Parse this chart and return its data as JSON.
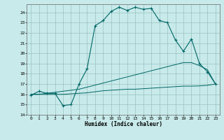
{
  "xlabel": "Humidex (Indice chaleur)",
  "bg_color": "#c8eaea",
  "grid_color": "#9bbfbf",
  "line_color": "#006666",
  "xlim": [
    -0.5,
    23.5
  ],
  "ylim": [
    14,
    24.8
  ],
  "yticks": [
    14,
    15,
    16,
    17,
    18,
    19,
    20,
    21,
    22,
    23,
    24
  ],
  "xticks": [
    0,
    1,
    2,
    3,
    4,
    5,
    6,
    7,
    8,
    9,
    10,
    11,
    12,
    13,
    14,
    15,
    16,
    17,
    18,
    19,
    20,
    21,
    22,
    23
  ],
  "main_line": [
    15.9,
    16.3,
    16.1,
    16.1,
    14.9,
    15.0,
    17.0,
    18.5,
    22.7,
    23.2,
    24.1,
    24.5,
    24.2,
    24.5,
    24.3,
    24.4,
    23.2,
    23.0,
    21.3,
    20.2,
    21.4,
    19.0,
    18.2,
    17.0
  ],
  "upper_line": [
    16.0,
    16.0,
    16.1,
    16.2,
    16.3,
    16.4,
    16.5,
    16.7,
    16.9,
    17.1,
    17.3,
    17.5,
    17.7,
    17.9,
    18.1,
    18.3,
    18.5,
    18.7,
    18.9,
    19.1,
    19.1,
    18.8,
    18.4,
    17.0
  ],
  "lower_line": [
    16.0,
    16.0,
    16.0,
    16.0,
    16.0,
    16.05,
    16.1,
    16.15,
    16.25,
    16.35,
    16.4,
    16.45,
    16.5,
    16.5,
    16.55,
    16.6,
    16.65,
    16.7,
    16.75,
    16.8,
    16.8,
    16.82,
    16.88,
    17.0
  ]
}
